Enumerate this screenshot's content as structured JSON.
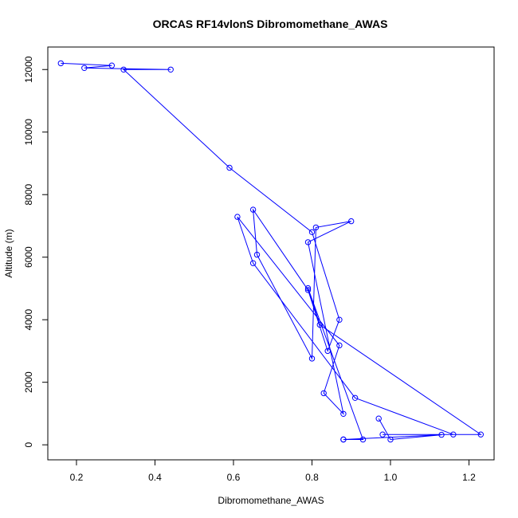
{
  "chart_data": {
    "type": "line",
    "title": "ORCAS RF14vlonS Dibromomethane_AWAS",
    "xlabel": "Dibromomethane_AWAS",
    "ylabel": "Altitude (m)",
    "xlim": [
      0.127,
      1.264
    ],
    "ylim": [
      -480,
      12720
    ],
    "xticks": [
      0.2,
      0.4,
      0.6,
      0.8,
      1.0,
      1.2
    ],
    "xtick_labels": [
      "0.2",
      "0.4",
      "0.6",
      "0.8",
      "1.0",
      "1.2"
    ],
    "yticks": [
      0,
      2000,
      4000,
      6000,
      8000,
      10000,
      12000
    ],
    "ytick_labels": [
      "0",
      "2000",
      "4000",
      "6000",
      "8000",
      "10000",
      "12000"
    ],
    "grid": false,
    "series": [
      {
        "color": "#0000ff",
        "x": [
          0.16,
          0.29,
          0.22,
          0.44,
          0.32,
          0.59,
          0.8,
          0.87,
          0.84,
          0.79,
          0.65,
          0.66,
          0.8,
          0.81,
          0.9,
          0.79,
          0.88,
          0.83,
          0.87,
          0.61,
          0.65,
          0.91,
          1.16,
          0.98,
          1.23,
          0.82,
          0.79,
          0.93,
          0.88,
          0.88,
          1.13,
          1.0,
          0.97
        ],
        "y": [
          12200,
          12130,
          12050,
          12000,
          12000,
          8860,
          6800,
          4000,
          3000,
          4950,
          7520,
          6080,
          2760,
          6950,
          7150,
          6480,
          990,
          1650,
          3180,
          7290,
          5810,
          1500,
          330,
          330,
          330,
          3840,
          5010,
          170,
          170,
          170,
          320,
          170,
          840
        ]
      }
    ]
  }
}
